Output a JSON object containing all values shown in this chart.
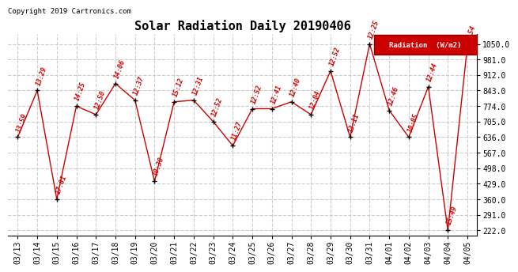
{
  "title": "Solar Radiation Daily 20190406",
  "copyright": "Copyright 2019 Cartronics.com",
  "background_color": "#ffffff",
  "grid_color": "#cccccc",
  "line_color": "#cc0000",
  "marker_color": "#000000",
  "label_color": "#cc0000",
  "legend_bg": "#cc0000",
  "legend_text": "Radiation  (W/m2)",
  "dates": [
    "03/13",
    "03/14",
    "03/15",
    "03/16",
    "03/17",
    "03/18",
    "03/19",
    "03/20",
    "03/21",
    "03/22",
    "03/23",
    "03/24",
    "03/25",
    "03/26",
    "03/27",
    "03/28",
    "03/29",
    "03/30",
    "03/31",
    "04/01",
    "04/02",
    "04/03",
    "04/04",
    "04/05"
  ],
  "values": [
    636,
    843,
    360,
    774,
    736,
    874,
    800,
    440,
    793,
    800,
    705,
    598,
    762,
    762,
    793,
    736,
    930,
    636,
    1050,
    755,
    636,
    860,
    222,
    1043
  ],
  "time_labels": [
    "13:59",
    "13:29",
    "17:01",
    "14:25",
    "12:50",
    "14:06",
    "12:37",
    "10:38",
    "15:12",
    "12:31",
    "12:52",
    "11:27",
    "12:52",
    "12:41",
    "12:40",
    "12:04",
    "12:52",
    "13:11",
    "12:25",
    "12:46",
    "10:05",
    "12:44",
    "15:49",
    "9:54"
  ],
  "yticks": [
    222.0,
    291.0,
    360.0,
    429.0,
    498.0,
    567.0,
    636.0,
    705.0,
    774.0,
    843.0,
    912.0,
    981.0,
    1050.0
  ],
  "ymin": 200,
  "ymax": 1095
}
